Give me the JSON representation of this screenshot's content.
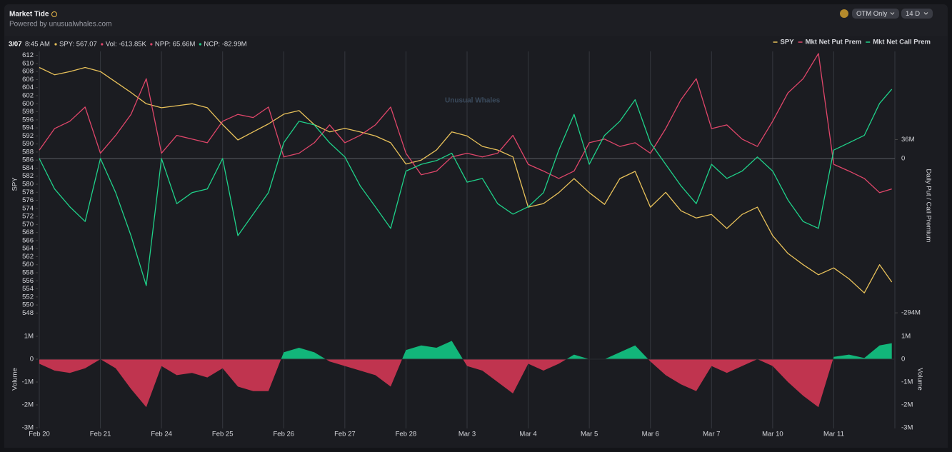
{
  "widget": {
    "title": "Market Tide",
    "subtitle": "Powered by unusualwhales.com",
    "controls": [
      "OTM Only",
      "14 D"
    ],
    "readout": {
      "date": "3/07",
      "time": "8:45 AM",
      "items": [
        "SPY: 567.07",
        "Vol: -613.85K",
        "NPP: 65.66M",
        "NCP: -82.99M"
      ]
    },
    "watermark": "Unusual Whales"
  },
  "chart_data": [
    {
      "type": "line",
      "y_label": "SPY",
      "y2_label": "Daily Put / Call Premium",
      "legend": "top-right",
      "x": [
        0,
        0.25,
        0.5,
        0.75,
        1,
        1.25,
        1.5,
        1.75,
        2,
        2.25,
        2.5,
        2.75,
        3,
        3.25,
        3.5,
        3.75,
        4,
        4.25,
        4.5,
        4.75,
        5,
        5.25,
        5.5,
        5.75,
        6,
        6.25,
        6.5,
        6.75,
        7,
        7.25,
        7.5,
        7.75,
        8,
        8.25,
        8.5,
        8.75,
        9,
        9.25,
        9.5,
        9.75,
        10,
        10.25,
        10.5,
        10.75,
        11,
        11.25,
        11.5,
        11.75,
        12,
        12.25,
        12.5,
        12.75,
        13,
        13.25,
        13.5,
        13.75,
        13.95
      ],
      "xlim": [
        0,
        14
      ],
      "ylim": [
        547,
        613
      ],
      "yticks": [
        548,
        550,
        552,
        554,
        556,
        558,
        560,
        562,
        564,
        566,
        568,
        570,
        572,
        574,
        576,
        578,
        580,
        582,
        584,
        586,
        588,
        590,
        592,
        594,
        596,
        598,
        600,
        602,
        604,
        606,
        608,
        610,
        612
      ],
      "y2lim": [
        -302,
        204
      ],
      "y2ticks": [
        {
          "value": -294,
          "label": "-294M"
        },
        0,
        {
          "value": 36,
          "label": "36M"
        }
      ],
      "series": [
        {
          "name": "SPY",
          "color": "#e8c15a",
          "values": [
            609,
            607.2,
            608,
            609,
            608,
            605.4,
            602.8,
            600,
            599,
            599.5,
            600,
            599,
            594.8,
            591,
            593,
            595,
            597.4,
            598.3,
            594.8,
            593,
            593.9,
            593,
            592,
            590.3,
            585,
            586,
            588.5,
            593,
            592,
            589.4,
            588.5,
            586.8,
            574.3,
            575.2,
            577.9,
            581.4,
            577.9,
            575,
            581.4,
            583.2,
            574.3,
            578,
            573.4,
            571.6,
            572.5,
            569,
            572.5,
            574.3,
            567.2,
            562.8,
            560,
            557.5,
            559.2,
            556.5,
            553,
            560,
            555.7
          ]
        },
        {
          "name": "Mkt Net Put Prem",
          "color": "#e0466a",
          "axis": "y2",
          "values": [
            16,
            57,
            71,
            98,
            10,
            44,
            84,
            152,
            10,
            44,
            37,
            30,
            71,
            84,
            78,
            98,
            3,
            10,
            30,
            64,
            30,
            44,
            64,
            98,
            10,
            -31,
            -24,
            3,
            10,
            3,
            10,
            44,
            -11,
            -24,
            -38,
            -24,
            30,
            37,
            23,
            30,
            10,
            57,
            112,
            152,
            57,
            64,
            37,
            23,
            71,
            125,
            152,
            200,
            -11,
            -24,
            -38,
            -65,
            -58
          ]
        },
        {
          "name": "Mkt Net Call Prem",
          "color": "#1fd28a",
          "axis": "y2",
          "values": [
            0,
            -58,
            -92,
            -120,
            0,
            -65,
            -147,
            -242,
            0,
            -86,
            -65,
            -58,
            0,
            -147,
            -106,
            -65,
            30,
            71,
            64,
            30,
            3,
            -52,
            -92,
            -133,
            -24,
            -11,
            -4,
            10,
            -45,
            -38,
            -86,
            -106,
            -92,
            -65,
            16,
            84,
            -11,
            44,
            71,
            112,
            30,
            -11,
            -52,
            -86,
            -11,
            -38,
            -24,
            3,
            -24,
            -79,
            -120,
            -133,
            16,
            30,
            44,
            105,
            132
          ]
        }
      ]
    },
    {
      "type": "area",
      "y_label": "Volume",
      "positive_color": "#12b67a",
      "negative_color": "#c0344f",
      "x": [
        0,
        0.25,
        0.5,
        0.75,
        1,
        1.25,
        1.5,
        1.75,
        2,
        2.25,
        2.5,
        2.75,
        3,
        3.25,
        3.5,
        3.75,
        4,
        4.25,
        4.5,
        4.75,
        5,
        5.25,
        5.5,
        5.75,
        6,
        6.25,
        6.5,
        6.75,
        7,
        7.25,
        7.5,
        7.75,
        8,
        8.25,
        8.5,
        8.75,
        9,
        9.25,
        9.5,
        9.75,
        10,
        10.25,
        10.5,
        10.75,
        11,
        11.25,
        11.5,
        11.75,
        12,
        12.25,
        12.5,
        12.75,
        13,
        13.25,
        13.5,
        13.75,
        13.95
      ],
      "values": [
        -0.2,
        -0.5,
        -0.6,
        -0.4,
        0,
        -0.4,
        -1.3,
        -2.1,
        -0.3,
        -0.7,
        -0.6,
        -0.8,
        -0.4,
        -1.2,
        -1.4,
        -1.4,
        0.3,
        0.5,
        0.3,
        -0.1,
        -0.3,
        -0.5,
        -0.7,
        -1.2,
        0.4,
        0.6,
        0.5,
        0.8,
        -0.3,
        -0.5,
        -1,
        -1.5,
        -0.2,
        -0.5,
        -0.2,
        0.2,
        0,
        0,
        0.3,
        0.6,
        -0.1,
        -0.7,
        -1.1,
        -1.4,
        -0.3,
        -0.6,
        -0.3,
        0,
        -0.3,
        -1,
        -1.6,
        -2.1,
        0.1,
        0.2,
        0.05,
        0.6,
        0.7
      ],
      "xlim": [
        0,
        14
      ],
      "xticks": [
        {
          "value": 0,
          "label": "Feb 20"
        },
        {
          "value": 1,
          "label": "Feb 21"
        },
        {
          "value": 2,
          "label": "Feb 24"
        },
        {
          "value": 3,
          "label": "Feb 25"
        },
        {
          "value": 4,
          "label": "Feb 26"
        },
        {
          "value": 5,
          "label": "Feb 27"
        },
        {
          "value": 6,
          "label": "Feb 28"
        },
        {
          "value": 7,
          "label": "Mar 3"
        },
        {
          "value": 8,
          "label": "Mar 4"
        },
        {
          "value": 9,
          "label": "Mar 5"
        },
        {
          "value": 10,
          "label": "Mar 6"
        },
        {
          "value": 11,
          "label": "Mar 7"
        },
        {
          "value": 12,
          "label": "Mar 10"
        },
        {
          "value": 13,
          "label": "Mar 11"
        }
      ],
      "ylim": [
        -3.03,
        1.28
      ],
      "yticks": [
        {
          "value": 1,
          "label": "1M"
        },
        0,
        {
          "value": -1,
          "label": "-1M"
        },
        {
          "value": -2,
          "label": "-2M"
        },
        {
          "value": -3,
          "label": "-3M"
        }
      ]
    }
  ]
}
